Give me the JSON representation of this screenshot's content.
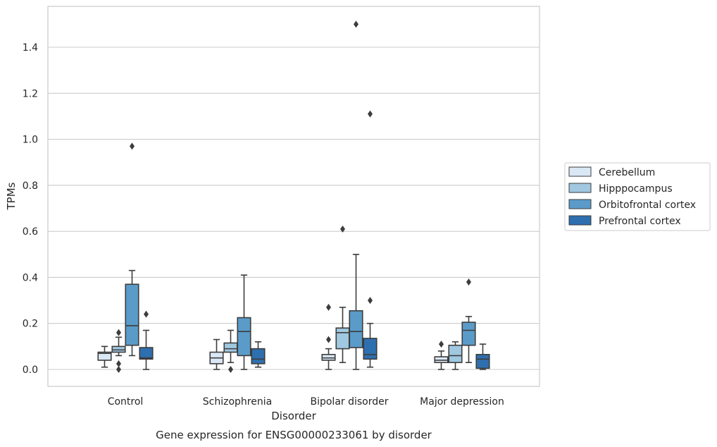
{
  "chart_data": {
    "type": "boxplot",
    "caption": "Gene expression for ENSG00000233061 by disorder",
    "xlabel": "Disorder",
    "ylabel": "TPMs",
    "ylim": [
      -0.075,
      1.57
    ],
    "yticks": [
      0.0,
      0.2,
      0.4,
      0.6,
      0.8,
      1.0,
      1.2,
      1.4
    ],
    "ytick_labels": [
      "0.0",
      "0.2",
      "0.4",
      "0.6",
      "0.8",
      "1.0",
      "1.2",
      "1.4"
    ],
    "grid": "horizontal",
    "legend_position": "right",
    "categories": [
      "Control",
      "Schizophrenia",
      "Bipolar disorder",
      "Major depression"
    ],
    "series": [
      {
        "name": "Cerebellum",
        "color": "#dae8f5",
        "boxes": [
          {
            "whislo": 0.01,
            "q1": 0.04,
            "med": 0.07,
            "q3": 0.075,
            "whishi": 0.1,
            "fliers": []
          },
          {
            "whislo": 0.0,
            "q1": 0.025,
            "med": 0.05,
            "q3": 0.075,
            "whishi": 0.13,
            "fliers": []
          },
          {
            "whislo": 0.0,
            "q1": 0.04,
            "med": 0.05,
            "q3": 0.065,
            "whishi": 0.09,
            "fliers": [
              0.13,
              0.27
            ]
          },
          {
            "whislo": 0.0,
            "q1": 0.03,
            "med": 0.04,
            "q3": 0.055,
            "whishi": 0.08,
            "fliers": [
              0.11
            ]
          }
        ]
      },
      {
        "name": "Hipppocampus",
        "color": "#a0c8e0",
        "boxes": [
          {
            "whislo": 0.06,
            "q1": 0.075,
            "med": 0.085,
            "q3": 0.1,
            "whishi": 0.14,
            "fliers": [
              0.16,
              0.0,
              0.025
            ]
          },
          {
            "whislo": 0.03,
            "q1": 0.075,
            "med": 0.09,
            "q3": 0.115,
            "whishi": 0.17,
            "fliers": [
              0.0
            ]
          },
          {
            "whislo": 0.03,
            "q1": 0.09,
            "med": 0.16,
            "q3": 0.18,
            "whishi": 0.27,
            "fliers": [
              0.61
            ]
          },
          {
            "whislo": 0.0,
            "q1": 0.03,
            "med": 0.06,
            "q3": 0.105,
            "whishi": 0.12,
            "fliers": []
          }
        ]
      },
      {
        "name": "Orbitofrontal cortex",
        "color": "#5a9bc9",
        "boxes": [
          {
            "whislo": 0.06,
            "q1": 0.105,
            "med": 0.19,
            "q3": 0.37,
            "whishi": 0.43,
            "fliers": [
              0.97
            ]
          },
          {
            "whislo": 0.0,
            "q1": 0.06,
            "med": 0.165,
            "q3": 0.225,
            "whishi": 0.41,
            "fliers": []
          },
          {
            "whislo": 0.0,
            "q1": 0.095,
            "med": 0.165,
            "q3": 0.255,
            "whishi": 0.5,
            "fliers": [
              1.5
            ]
          },
          {
            "whislo": 0.03,
            "q1": 0.105,
            "med": 0.17,
            "q3": 0.205,
            "whishi": 0.23,
            "fliers": [
              0.38
            ]
          }
        ]
      },
      {
        "name": "Prefrontal cortex",
        "color": "#2e6faf",
        "boxes": [
          {
            "whislo": 0.0,
            "q1": 0.045,
            "med": 0.05,
            "q3": 0.095,
            "whishi": 0.17,
            "fliers": [
              0.24
            ]
          },
          {
            "whislo": 0.01,
            "q1": 0.025,
            "med": 0.045,
            "q3": 0.09,
            "whishi": 0.12,
            "fliers": []
          },
          {
            "whislo": 0.01,
            "q1": 0.045,
            "med": 0.065,
            "q3": 0.135,
            "whishi": 0.2,
            "fliers": [
              0.3,
              1.11
            ]
          },
          {
            "whislo": 0.0,
            "q1": 0.005,
            "med": 0.045,
            "q3": 0.065,
            "whishi": 0.11,
            "fliers": []
          }
        ]
      }
    ]
  }
}
